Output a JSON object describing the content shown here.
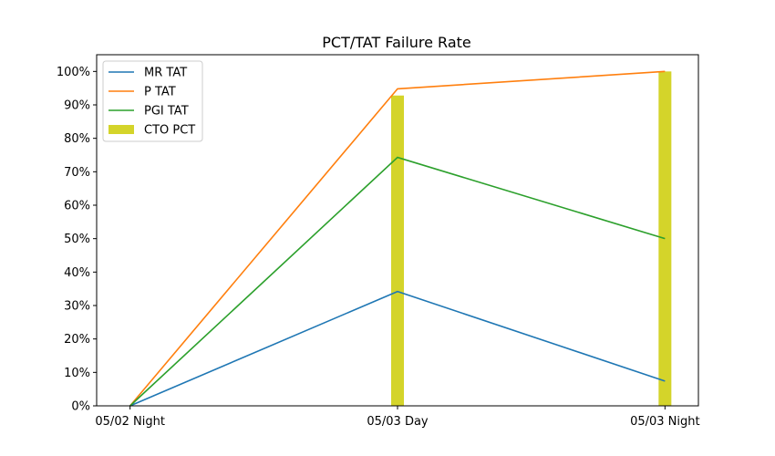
{
  "chart_data": {
    "type": "line",
    "title": "PCT/TAT Failure Rate",
    "xlabel": "",
    "ylabel": "",
    "categories": [
      "05/02 Night",
      "05/03 Day",
      "05/03 Night"
    ],
    "ylim": [
      0,
      1
    ],
    "y_ticks": [
      0,
      0.1,
      0.2,
      0.3,
      0.4,
      0.5,
      0.6,
      0.7,
      0.8,
      0.9,
      1.0
    ],
    "y_tick_labels": [
      "0%",
      "10%",
      "20%",
      "30%",
      "40%",
      "50%",
      "60%",
      "70%",
      "80%",
      "90%",
      "100%"
    ],
    "grid": false,
    "legend_position": "top-left",
    "series": [
      {
        "name": "MR TAT",
        "kind": "line",
        "color": "#1f77b4",
        "values": [
          0,
          0.342,
          0.074
        ]
      },
      {
        "name": "P TAT",
        "kind": "line",
        "color": "#ff7f0e",
        "values": [
          0,
          0.948,
          1.0
        ]
      },
      {
        "name": "PGI TAT",
        "kind": "line",
        "color": "#2ca02c",
        "values": [
          0,
          0.743,
          0.5
        ]
      },
      {
        "name": "CTO PCT",
        "kind": "bar",
        "color": "#d4d42a",
        "values": [
          0,
          0.928,
          1.0
        ]
      }
    ]
  }
}
